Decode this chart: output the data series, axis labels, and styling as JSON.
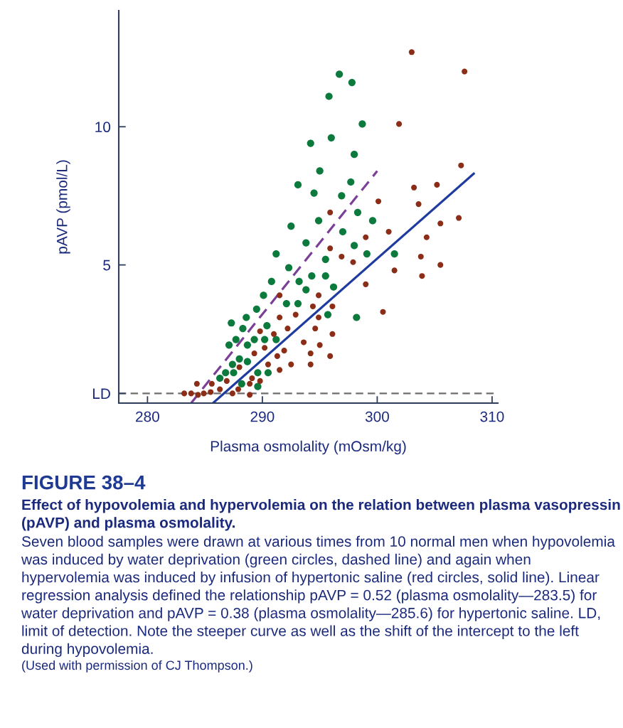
{
  "chart_data": {
    "type": "scatter",
    "title": "FIGURE 38–4",
    "subtitle": "Effect of hypovolemia and hypervolemia on the relation between plasma vasopressin (pAVP) and plasma osmolality.",
    "xlabel": "Plasma osmolality (mOsm/kg)",
    "ylabel": "pAVP (pmol/L)",
    "annotations": [
      "Seven blood samples were drawn at various times from 10 normal men when hypovolemia was induced by water deprivation (green circles, dashed line) and again when hypervolemia was induced by infusion of hypertonic saline (red circles, solid line). Linear regression analysis defined the relationship pAVP = 0.52 (plasma osmolality—283.5) for water deprivation and pAVP = 0.38 (plasma osmolality—285.6) for hypertonic saline. LD, limit of detection. Note the steeper curve as well as the shift of the intercept to the left during hypovolemia.",
      "(Used with permission of CJ Thompson.)"
    ],
    "xlim": [
      277.5,
      310.5
    ],
    "ylim": [
      0,
      14.2
    ],
    "xticks": [
      280,
      290,
      300,
      310
    ],
    "yticks": [
      {
        "value": 0.35,
        "label": "LD"
      },
      5,
      10
    ],
    "marker": "circle",
    "ref_lines": [
      {
        "axis": "y",
        "value": 0.35,
        "color": "#6e6e6e",
        "line_style": "dashed"
      }
    ],
    "series": [
      {
        "color": "#0b7a3c",
        "x": [
          296.7,
          297.8,
          295.8,
          298.7,
          296.0,
          294.2,
          298.0,
          295.0,
          293.1,
          297.7,
          294.5,
          296.9,
          298.3,
          294.9,
          299.6,
          292.5,
          297.0,
          293.8,
          298.0,
          299.1,
          301.5,
          295.5,
          291.2,
          292.3,
          294.3,
          295.5,
          293.2,
          293.8,
          296.2,
          292.1,
          293.1,
          295.7,
          298.2,
          291.2,
          290.8,
          290.1,
          289.5,
          288.6,
          287.3,
          288.3,
          290.4,
          287.7,
          289.3,
          290.2,
          287.1,
          288.7,
          288.0,
          287.4,
          288.7,
          286.8,
          287.5,
          286.3,
          289.6,
          290.5,
          288.2,
          289.6
        ],
        "values": [
          11.9,
          11.6,
          11.1,
          10.1,
          9.6,
          9.4,
          9.0,
          8.4,
          7.9,
          8.0,
          7.6,
          7.5,
          6.9,
          6.6,
          6.6,
          6.4,
          6.2,
          5.8,
          5.7,
          5.4,
          5.4,
          5.2,
          5.4,
          4.9,
          4.6,
          4.6,
          4.4,
          4.1,
          4.2,
          3.6,
          3.6,
          3.2,
          3.1,
          2.3,
          4.4,
          3.9,
          3.4,
          3.1,
          2.9,
          2.7,
          2.8,
          2.3,
          2.3,
          2.3,
          2.1,
          2.1,
          1.6,
          1.4,
          1.5,
          1.1,
          1.1,
          0.9,
          1.1,
          1.1,
          0.7,
          0.6
        ]
      },
      {
        "color": "#8b2d17",
        "x": [
          303.0,
          307.6,
          301.9,
          307.3,
          303.2,
          305.2,
          300.1,
          303.6,
          307.1,
          305.5,
          295.9,
          301.0,
          304.3,
          299.0,
          303.8,
          301.5,
          305.5,
          303.9,
          300.5,
          295.9,
          296.9,
          297.9,
          299.0,
          294.9,
          291.5,
          294.4,
          296.1,
          292.9,
          294.9,
          291.5,
          292.2,
          294.6,
          296.1,
          293.6,
          295.0,
          291.9,
          294.2,
          295.9,
          291.3,
          292.5,
          294.2,
          291.5,
          289.8,
          291.0,
          289.3,
          290.2,
          290.5,
          288.0,
          289.1,
          289.8,
          286.9,
          285.6,
          284.3,
          286.3,
          288.9,
          287.9,
          285.5,
          283.2,
          283.8,
          284.4,
          284.9,
          287.4,
          288.9
        ],
        "values": [
          12.7,
          12.0,
          10.1,
          8.6,
          7.8,
          7.9,
          7.3,
          7.2,
          6.7,
          6.5,
          6.9,
          6.2,
          6.0,
          6.0,
          5.3,
          4.8,
          5.0,
          4.6,
          3.3,
          5.6,
          5.3,
          5.1,
          4.3,
          3.9,
          3.9,
          3.5,
          3.5,
          3.2,
          3.1,
          3.1,
          2.7,
          2.7,
          2.5,
          2.2,
          2.1,
          1.9,
          1.8,
          1.7,
          1.7,
          1.4,
          1.4,
          1.2,
          2.6,
          2.5,
          1.8,
          2.0,
          1.4,
          1.3,
          0.9,
          0.8,
          0.8,
          0.7,
          0.7,
          0.5,
          0.7,
          0.5,
          0.4,
          0.35,
          0.35,
          0.3,
          0.35,
          0.35,
          0.3
        ]
      },
      {
        "type": "line",
        "color": "#7b3f98",
        "line_style": "dashed",
        "marker": "none",
        "x": [
          283.8,
          300.0
        ],
        "values": [
          0,
          8.4
        ]
      },
      {
        "type": "line",
        "color": "#1f3b9f",
        "line_style": "solid",
        "marker": "none",
        "x": [
          285.7,
          308.4
        ],
        "values": [
          0,
          8.3
        ]
      }
    ]
  }
}
